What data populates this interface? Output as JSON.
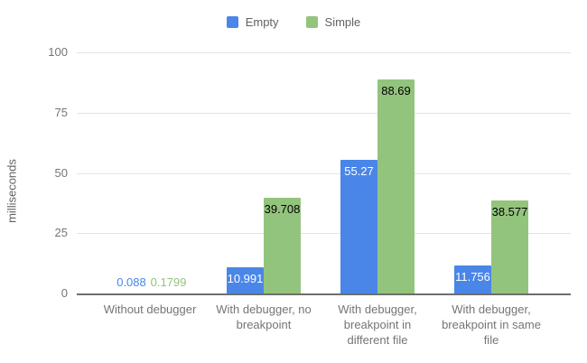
{
  "chart_data": {
    "type": "bar",
    "title": "",
    "xlabel": "",
    "ylabel": "milliseconds",
    "ylim": [
      0,
      100
    ],
    "yticks": [
      0,
      25,
      50,
      75,
      100
    ],
    "grid": true,
    "legend_position": "top-center",
    "background_color": "#ffffff",
    "gridline_color": "#e3e3e3",
    "baseline_color": "#6e6e6e",
    "axis_text_color": "#757575",
    "categories": [
      "Without debugger",
      "With debugger, no breakpoint",
      "With debugger, breakpoint in different file",
      "With debugger, breakpoint in same file"
    ],
    "series": [
      {
        "name": "Empty",
        "color": "#4a86e8",
        "label_color_inside": "#ffffff",
        "values": [
          0.088,
          10.991,
          55.27,
          11.756
        ]
      },
      {
        "name": "Simple",
        "color": "#93c47d",
        "label_color_inside": "#000000",
        "values": [
          0.1799,
          39.708,
          88.69,
          38.577
        ]
      }
    ]
  }
}
